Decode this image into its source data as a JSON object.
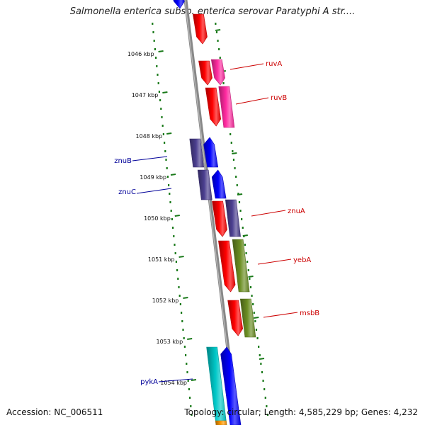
{
  "title": "Salmonella enterica subsp. enterica serovar Paratyphi A str....",
  "footer": {
    "accession": "Accession: NC_006511",
    "summary": "Topology: circular; Length: 4,585,229 bp; Genes: 4,232"
  },
  "ticks": [
    "1046 kbp",
    "1047 kbp",
    "1048 kbp",
    "1049 kbp",
    "1050 kbp",
    "1051 kbp",
    "1052 kbp",
    "1053 kbp",
    "1054 kbp"
  ],
  "gene_labels": [
    {
      "name": "ruvA",
      "color": "#cc0000"
    },
    {
      "name": "ruvB",
      "color": "#cc0000"
    },
    {
      "name": "znuB",
      "color": "#000099"
    },
    {
      "name": "znuC",
      "color": "#000099"
    },
    {
      "name": "znuA",
      "color": "#cc0000"
    },
    {
      "name": "yebA",
      "color": "#cc0000"
    },
    {
      "name": "msbB",
      "color": "#cc0000"
    },
    {
      "name": "pykA",
      "color": "#000099"
    }
  ],
  "colors": {
    "backbone": "#888888",
    "gc_dots": "#1a7a1a",
    "red_feature": "#ff0000",
    "pink_feature": "#ff2aa0",
    "blue_feature": "#0000ff",
    "slate_feature": "#4b3f8f",
    "olive_feature": "#6b8e23",
    "cyan_feature": "#00c8c8",
    "orange_feature": "#ff9900"
  }
}
